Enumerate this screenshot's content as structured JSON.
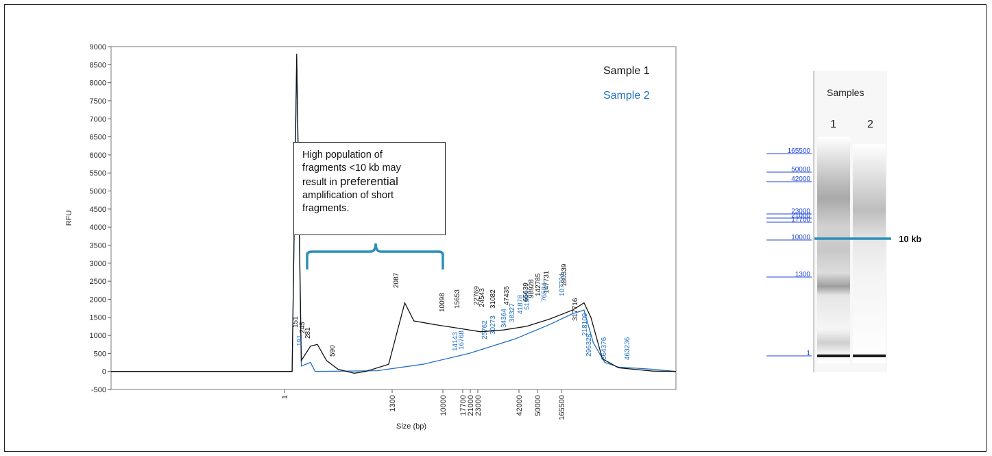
{
  "chart_data": [
    {
      "type": "line",
      "title": "",
      "xlabel": "Size (bp)",
      "ylabel": "RFU",
      "ylim": [
        -500,
        9000
      ],
      "y_ticks": [
        -500,
        0,
        500,
        1000,
        1500,
        2000,
        2500,
        3000,
        3500,
        4000,
        4500,
        5000,
        5500,
        6000,
        6500,
        7000,
        7500,
        8000,
        8500,
        9000
      ],
      "x_ticks": [
        "1",
        "1300",
        "10000",
        "17700",
        "21000",
        "23000",
        "42000",
        "50000",
        "165500"
      ],
      "legend": {
        "placement": "top-right",
        "entries": [
          {
            "label": "Sample 1",
            "color": "#111111"
          },
          {
            "label": "Sample 2",
            "color": "#1f6fc4"
          }
        ]
      },
      "grid": false,
      "series": [
        {
          "name": "Sample 1",
          "color": "#111111",
          "points": [
            [
              0,
              0
            ],
            [
              0.3,
              0
            ],
            [
              0.5,
              8800
            ],
            [
              0.7,
              300
            ],
            [
              1.1,
              700
            ],
            [
              1.4,
              750
            ],
            [
              1.8,
              300
            ],
            [
              2.3,
              60
            ],
            [
              3.0,
              -50
            ],
            [
              3.5,
              0
            ],
            [
              4.5,
              200
            ],
            [
              5.2,
              1900
            ],
            [
              5.6,
              1400
            ],
            [
              6.5,
              1300
            ],
            [
              7.5,
              1200
            ],
            [
              8.5,
              1100
            ],
            [
              9.5,
              1150
            ],
            [
              10.5,
              1250
            ],
            [
              11.5,
              1450
            ],
            [
              12.5,
              1700
            ],
            [
              13.0,
              1900
            ],
            [
              13.3,
              1500
            ],
            [
              13.8,
              350
            ],
            [
              14.5,
              100
            ],
            [
              16.0,
              10
            ],
            [
              17.0,
              0
            ]
          ],
          "peak_labels": [
            "151",
            "245",
            "281",
            "590",
            "2087",
            "10098",
            "15653",
            "22769",
            "24543",
            "31082",
            "47435",
            "65639",
            "98928",
            "142785",
            "147731",
            "180339",
            "317716"
          ]
        },
        {
          "name": "Sample 2",
          "color": "#1f6fc4",
          "points": [
            [
              0,
              0
            ],
            [
              0.3,
              0
            ],
            [
              0.5,
              8600
            ],
            [
              0.7,
              150
            ],
            [
              1.1,
              250
            ],
            [
              1.3,
              0
            ],
            [
              4.0,
              20
            ],
            [
              6.0,
              200
            ],
            [
              8.0,
              500
            ],
            [
              10.0,
              900
            ],
            [
              11.5,
              1300
            ],
            [
              12.5,
              1600
            ],
            [
              13.0,
              1700
            ],
            [
              13.4,
              800
            ],
            [
              13.9,
              250
            ],
            [
              14.5,
              120
            ],
            [
              16.0,
              60
            ],
            [
              17.0,
              0
            ]
          ],
          "peak_labels": [
            "191",
            "14143",
            "16768",
            "25762",
            "30273",
            "34364",
            "38327",
            "41878",
            "51985",
            "76584",
            "107724",
            "218109",
            "296328",
            "364376",
            "463236"
          ]
        }
      ]
    },
    {
      "type": "table",
      "title": "Samples",
      "lanes": [
        "1",
        "2"
      ],
      "ladder_labels": [
        "165500",
        "50000",
        "42000",
        "23000",
        "21000",
        "17700",
        "10000",
        "1300",
        "1"
      ],
      "marker": {
        "label": "10 kb",
        "color": "#2a8fb8"
      }
    }
  ],
  "annotation": {
    "line1": "High population of",
    "line2": "fragments <10 kb may",
    "line3_prefix": "result in ",
    "line3_emph": "preferential",
    "line4": "amplification of short",
    "line5": "fragments."
  },
  "colors": {
    "sample1": "#111111",
    "sample2": "#1f6fc4",
    "bracket": "#2a8fb8",
    "ladder": "#1f44d8"
  }
}
